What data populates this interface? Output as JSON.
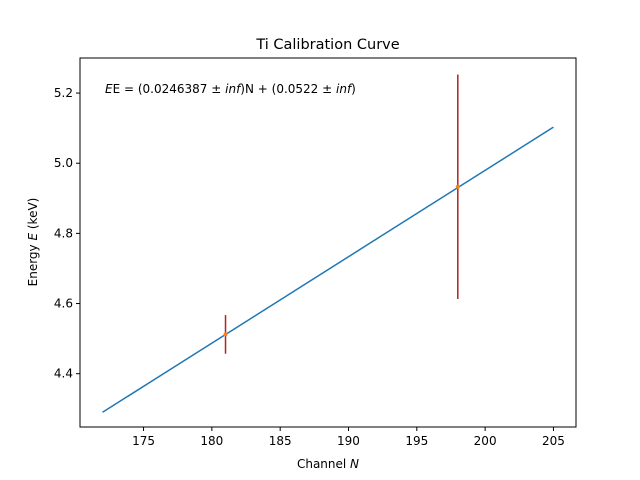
{
  "chart_data": {
    "type": "line",
    "title": "Ti Calibration Curve",
    "xlabel": "Channel ",
    "xlabel_var": "N",
    "ylabel": "Energy ",
    "ylabel_var": "E",
    "ylabel_unit": " (keV)",
    "xlim": [
      170.35,
      206.65
    ],
    "ylim": [
      4.248,
      5.3
    ],
    "xticks": [
      175,
      180,
      185,
      190,
      195,
      200,
      205
    ],
    "yticks": [
      4.4,
      4.6,
      4.8,
      5.0,
      5.2
    ],
    "series": [
      {
        "kind": "fit-line",
        "color": "#1f77b4",
        "x": [
          172,
          205
        ],
        "y": [
          4.29,
          5.103
        ]
      },
      {
        "kind": "points-with-errorbars",
        "marker_color": "#ff7f0e",
        "errorbar_color": "#b22222",
        "points": [
          {
            "x": 181,
            "y": 4.512,
            "yerr": 0.055
          },
          {
            "x": 198,
            "y": 4.933,
            "yerr": 0.32
          }
        ]
      }
    ],
    "annotation": {
      "prefix": "E = (0.0246387 ± ",
      "inf1": "inf",
      "mid": ")N + (0.0522 ± ",
      "inf2": "inf",
      "suffix": ")"
    },
    "grid": false,
    "legend": "none"
  }
}
